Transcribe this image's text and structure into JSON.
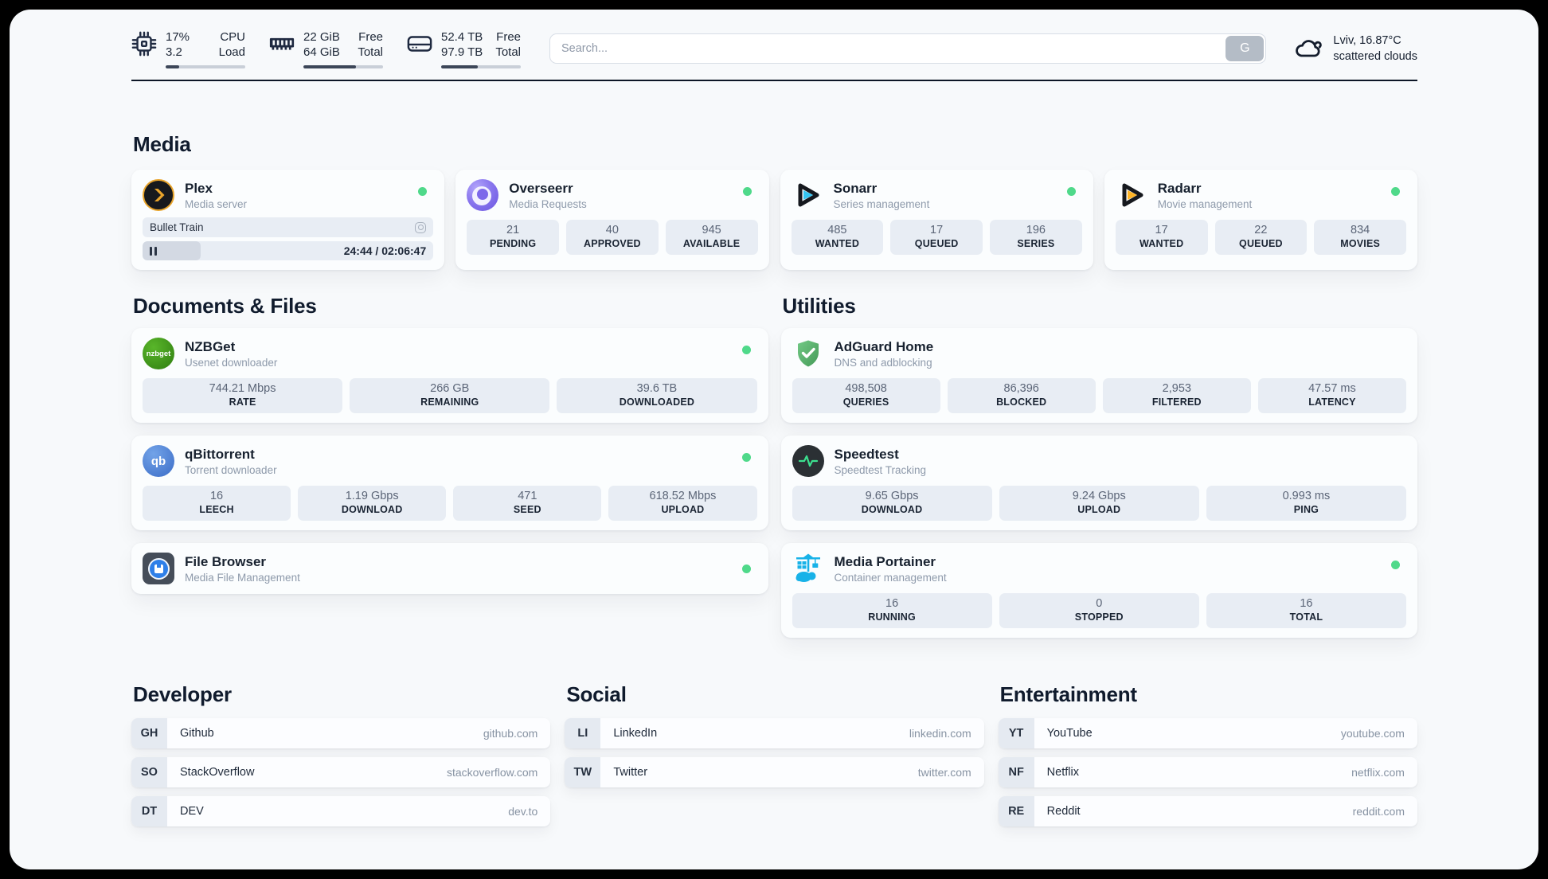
{
  "colors": {
    "status_online": "#4fd98a",
    "page_bg": "#f7f9fb",
    "tile_bg": "#e8edf4",
    "ink": "#16202f",
    "accent_plex": "#e8a42b",
    "accent_overseerr": "#7d68ea",
    "accent_sonarr": "#35c5f1",
    "accent_radarr": "#ffb425",
    "accent_nzbget": "#3a9214",
    "accent_qbittorrent": "#3b6cc7",
    "accent_filebrowser": "#2e7fe8",
    "accent_adguard": "#5cb56f",
    "accent_speedtest": "#3ce08f",
    "accent_portainer": "#18b2e8"
  },
  "header": {
    "cpu": {
      "value_top": "17%",
      "value_bottom": "3.2",
      "label_top": "CPU",
      "label_bottom": "Load",
      "progress": 17,
      "icon": "cpu-chip-icon"
    },
    "memory": {
      "value_top": "22 GiB",
      "value_bottom": "64 GiB",
      "label_top": "Free",
      "label_bottom": "Total",
      "progress": 66,
      "icon": "ram-icon"
    },
    "storage": {
      "value_top": "52.4 TB",
      "value_bottom": "97.9 TB",
      "label_top": "Free",
      "label_bottom": "Total",
      "progress": 46,
      "icon": "hard-drive-icon"
    },
    "search": {
      "placeholder": "Search...",
      "button_label": "G"
    },
    "weather": {
      "location": "Lviv, 16.87°C",
      "condition": "scattered clouds",
      "icon": "cloud-icon"
    }
  },
  "sections": {
    "media": {
      "title": "Media",
      "cards": [
        {
          "name": "Plex",
          "subtitle": "Media server",
          "online": true,
          "icon": "plex-chevron-icon",
          "now_playing": {
            "title": "Bullet Train",
            "time_display": "24:44 / 02:06:47",
            "progress": 20
          }
        },
        {
          "name": "Overseerr",
          "subtitle": "Media Requests",
          "online": true,
          "icon": "overseerr-eye-icon",
          "stats": [
            {
              "value": "21",
              "label": "PENDING"
            },
            {
              "value": "40",
              "label": "APPROVED"
            },
            {
              "value": "945",
              "label": "AVAILABLE"
            }
          ]
        },
        {
          "name": "Sonarr",
          "subtitle": "Series management",
          "online": true,
          "icon": "play-triangle-cyan-icon",
          "stats": [
            {
              "value": "485",
              "label": "WANTED"
            },
            {
              "value": "17",
              "label": "QUEUED"
            },
            {
              "value": "196",
              "label": "SERIES"
            }
          ]
        },
        {
          "name": "Radarr",
          "subtitle": "Movie management",
          "online": true,
          "icon": "play-triangle-amber-icon",
          "stats": [
            {
              "value": "17",
              "label": "WANTED"
            },
            {
              "value": "22",
              "label": "QUEUED"
            },
            {
              "value": "834",
              "label": "MOVIES"
            }
          ]
        }
      ]
    },
    "documents": {
      "title": "Documents & Files",
      "cards": [
        {
          "name": "NZBGet",
          "subtitle": "Usenet downloader",
          "online": true,
          "icon": "nzbget-circle-icon",
          "icon_text": "nzbget",
          "stats": [
            {
              "value": "744.21 Mbps",
              "label": "RATE"
            },
            {
              "value": "266 GB",
              "label": "REMAINING"
            },
            {
              "value": "39.6 TB",
              "label": "DOWNLOADED"
            }
          ]
        },
        {
          "name": "qBittorrent",
          "subtitle": "Torrent downloader",
          "online": true,
          "icon": "qbittorrent-circle-icon",
          "icon_text": "qb",
          "stats": [
            {
              "value": "16",
              "label": "LEECH"
            },
            {
              "value": "1.19 Gbps",
              "label": "DOWNLOAD"
            },
            {
              "value": "471",
              "label": "SEED"
            },
            {
              "value": "618.52 Mbps",
              "label": "UPLOAD"
            }
          ]
        },
        {
          "name": "File Browser",
          "subtitle": "Media File Management",
          "online": true,
          "icon": "floppy-disk-icon"
        }
      ]
    },
    "utilities": {
      "title": "Utilities",
      "cards": [
        {
          "name": "AdGuard Home",
          "subtitle": "DNS and adblocking",
          "online": false,
          "icon": "shield-check-icon",
          "stats": [
            {
              "value": "498,508",
              "label": "QUERIES"
            },
            {
              "value": "86,396",
              "label": "BLOCKED"
            },
            {
              "value": "2,953",
              "label": "FILTERED"
            },
            {
              "value": "47.57 ms",
              "label": "LATENCY"
            }
          ]
        },
        {
          "name": "Speedtest",
          "subtitle": "Speedtest Tracking",
          "online": false,
          "icon": "pulse-line-icon",
          "stats": [
            {
              "value": "9.65 Gbps",
              "label": "DOWNLOAD"
            },
            {
              "value": "9.24 Gbps",
              "label": "UPLOAD"
            },
            {
              "value": "0.993 ms",
              "label": "PING"
            }
          ]
        },
        {
          "name": "Media Portainer",
          "subtitle": "Container management",
          "online": true,
          "icon": "crane-container-icon",
          "stats": [
            {
              "value": "16",
              "label": "RUNNING"
            },
            {
              "value": "0",
              "label": "STOPPED"
            },
            {
              "value": "16",
              "label": "TOTAL"
            }
          ]
        }
      ]
    },
    "bookmarks": [
      {
        "title": "Developer",
        "links": [
          {
            "abbr": "GH",
            "name": "Github",
            "url": "github.com"
          },
          {
            "abbr": "SO",
            "name": "StackOverflow",
            "url": "stackoverflow.com"
          },
          {
            "abbr": "DT",
            "name": "DEV",
            "url": "dev.to"
          }
        ]
      },
      {
        "title": "Social",
        "links": [
          {
            "abbr": "LI",
            "name": "LinkedIn",
            "url": "linkedin.com"
          },
          {
            "abbr": "TW",
            "name": "Twitter",
            "url": "twitter.com"
          }
        ]
      },
      {
        "title": "Entertainment",
        "links": [
          {
            "abbr": "YT",
            "name": "YouTube",
            "url": "youtube.com"
          },
          {
            "abbr": "NF",
            "name": "Netflix",
            "url": "netflix.com"
          },
          {
            "abbr": "RE",
            "name": "Reddit",
            "url": "reddit.com"
          }
        ]
      }
    ]
  }
}
